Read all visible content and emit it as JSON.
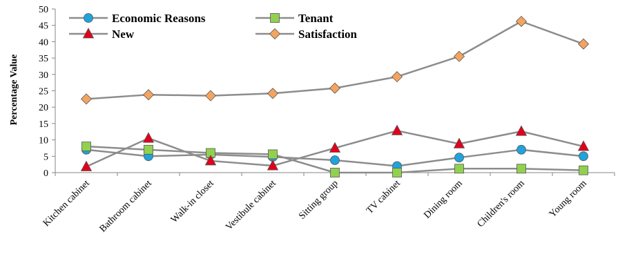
{
  "chart_data": {
    "type": "line",
    "title": "",
    "xlabel": "",
    "ylabel": "Percentage Value",
    "ylim": [
      0,
      50
    ],
    "yticks": [
      0,
      5,
      10,
      15,
      20,
      25,
      30,
      35,
      40,
      45,
      50
    ],
    "grid": false,
    "legend_position": "top-left",
    "categories": [
      "Kitchen cabinet",
      "Bathroom cabinet",
      "Walk-in closet",
      "Vestibule cabinet",
      "Sitting group",
      "TV cabinet",
      "Dining room",
      "Children's room",
      "Young room"
    ],
    "series": [
      {
        "name": "Economic Reasons",
        "marker": "circle",
        "color": "#1FA3DC",
        "line_color": "#8C8C8C",
        "values": [
          7,
          5,
          5.5,
          4.8,
          3.8,
          2,
          4.6,
          7,
          5
        ]
      },
      {
        "name": "Tenant",
        "marker": "square",
        "color": "#92D050",
        "line_color": "#8C8C8C",
        "values": [
          8,
          7,
          6,
          5.6,
          0,
          0,
          1.2,
          1.2,
          0.7
        ]
      },
      {
        "name": "New",
        "marker": "triangle",
        "color": "#E2001A",
        "line_color": "#8C8C8C",
        "values": [
          1.8,
          10.5,
          3.6,
          2.1,
          7.5,
          12.8,
          8.8,
          12.6,
          8
        ]
      },
      {
        "name": "Satisfaction",
        "marker": "diamond",
        "color": "#F4A460",
        "line_color": "#8C8C8C",
        "values": [
          22.5,
          23.8,
          23.5,
          24.2,
          25.8,
          29.3,
          35.5,
          46.2,
          39.3
        ]
      }
    ]
  }
}
